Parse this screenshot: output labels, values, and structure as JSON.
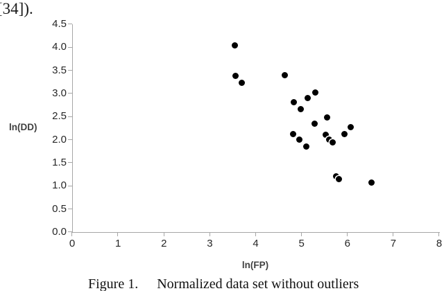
{
  "page": {
    "top_text": "[34])."
  },
  "chart_data": {
    "type": "scatter",
    "title": "",
    "xlabel": "ln(FP)",
    "ylabel": "ln(DD)",
    "xlim": [
      0,
      8
    ],
    "ylim": [
      0,
      4.5
    ],
    "grid": false,
    "legend": "none",
    "marker_color": "#000000",
    "axis_color": "#a6a6a6",
    "x_ticks": [
      "0",
      "1",
      "2",
      "3",
      "4",
      "5",
      "6",
      "7",
      "8"
    ],
    "y_ticks": [
      "4.5",
      "4.0",
      "3.5",
      "3.0",
      "2.5",
      "2.0",
      "1.5",
      "1.0",
      "0.5",
      "0.0"
    ],
    "points": [
      [
        3.55,
        4.05
      ],
      [
        3.56,
        3.38
      ],
      [
        3.69,
        3.24
      ],
      [
        4.64,
        3.4
      ],
      [
        4.83,
        2.81
      ],
      [
        5.13,
        2.91
      ],
      [
        5.3,
        3.02
      ],
      [
        4.98,
        2.67
      ],
      [
        5.56,
        2.48
      ],
      [
        5.29,
        2.35
      ],
      [
        6.07,
        2.28
      ],
      [
        4.81,
        2.13
      ],
      [
        4.95,
        2.0
      ],
      [
        5.11,
        1.86
      ],
      [
        5.52,
        2.11
      ],
      [
        5.93,
        2.12
      ],
      [
        5.61,
        2.01
      ],
      [
        5.68,
        1.95
      ],
      [
        5.75,
        1.21
      ],
      [
        5.81,
        1.15
      ],
      [
        6.53,
        1.08
      ]
    ]
  },
  "caption": {
    "label": "Figure 1.",
    "text": "Normalized data set without outliers"
  }
}
